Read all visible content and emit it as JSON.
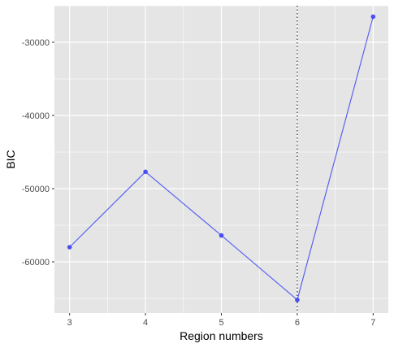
{
  "chart_data": {
    "type": "line",
    "title": "",
    "xlabel": "Region numbers",
    "ylabel": "BIC",
    "x": [
      3,
      4,
      5,
      6,
      7
    ],
    "y": [
      -58000,
      -47700,
      -56400,
      -65200,
      -26500
    ],
    "xlim": [
      2.8,
      7.2
    ],
    "ylim": [
      -67000,
      -25000
    ],
    "xticks": [
      3,
      4,
      5,
      6,
      7
    ],
    "xtick_labels": [
      "3",
      "4",
      "5",
      "6",
      "7"
    ],
    "yticks": [
      -60000,
      -50000,
      -40000,
      -30000
    ],
    "ytick_labels": [
      "-60000",
      "-50000",
      "-40000",
      "-30000"
    ],
    "vline_x": 6,
    "vline_style": "dotted",
    "line_color": "#5a63f0",
    "point_color": "#4a4ef0",
    "panel_background": "#e5e5e5",
    "grid": true,
    "grid_color": "#ffffff",
    "legend": "none"
  }
}
